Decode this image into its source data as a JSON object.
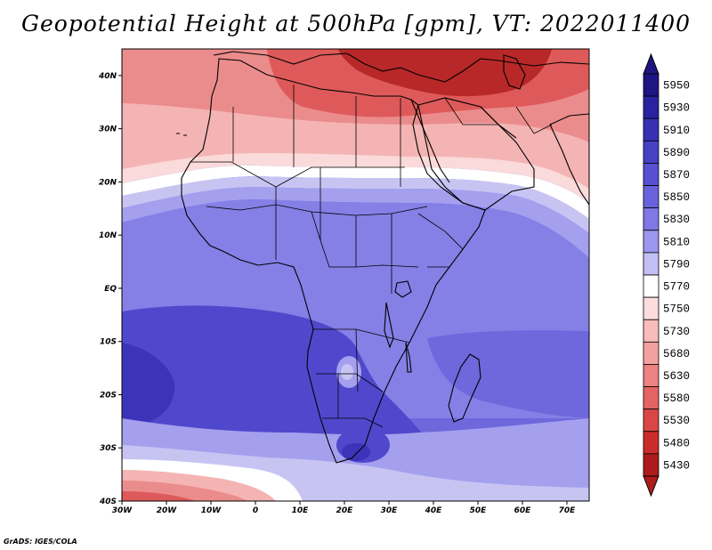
{
  "title": "Geopotential Height at 500hPa [gpm], VT: 2022011400",
  "footer": "GrADS: IGES/COLA",
  "map": {
    "lon_range": [
      -30,
      75
    ],
    "lat_range": [
      -40,
      45
    ],
    "lat_ticks": [
      {
        "value": 40,
        "label": "40N"
      },
      {
        "value": 30,
        "label": "30N"
      },
      {
        "value": 20,
        "label": "20N"
      },
      {
        "value": 10,
        "label": "10N"
      },
      {
        "value": 0,
        "label": "EQ"
      },
      {
        "value": -10,
        "label": "10S"
      },
      {
        "value": -20,
        "label": "20S"
      },
      {
        "value": -30,
        "label": "30S"
      },
      {
        "value": -40,
        "label": "40S"
      }
    ],
    "lon_ticks": [
      {
        "value": -30,
        "label": "30W"
      },
      {
        "value": -20,
        "label": "20W"
      },
      {
        "value": -10,
        "label": "10W"
      },
      {
        "value": 0,
        "label": "0"
      },
      {
        "value": 10,
        "label": "10E"
      },
      {
        "value": 20,
        "label": "20E"
      },
      {
        "value": 30,
        "label": "30E"
      },
      {
        "value": 40,
        "label": "40E"
      },
      {
        "value": 50,
        "label": "50E"
      },
      {
        "value": 60,
        "label": "60E"
      },
      {
        "value": 70,
        "label": "70E"
      }
    ]
  },
  "colorbar": {
    "levels": [
      {
        "label": "5950",
        "color": "#1e1482"
      },
      {
        "label": "5930",
        "color": "#2a22a0"
      },
      {
        "label": "5910",
        "color": "#3730b5"
      },
      {
        "label": "5890",
        "color": "#4640c4"
      },
      {
        "label": "5870",
        "color": "#5750d2"
      },
      {
        "label": "5850",
        "color": "#6a62dc"
      },
      {
        "label": "5830",
        "color": "#7f78e6"
      },
      {
        "label": "5810",
        "color": "#9c96ee"
      },
      {
        "label": "5790",
        "color": "#c2bff4"
      },
      {
        "label": "5770",
        "color": "#ffffff"
      },
      {
        "label": "5750",
        "color": "#fcdcdc"
      },
      {
        "label": "5730",
        "color": "#f8bcbc"
      },
      {
        "label": "5680",
        "color": "#f3a0a0"
      },
      {
        "label": "5630",
        "color": "#ec8282"
      },
      {
        "label": "5580",
        "color": "#e46464"
      },
      {
        "label": "5530",
        "color": "#da4646"
      },
      {
        "label": "5480",
        "color": "#ca2c2c"
      },
      {
        "label": "5430",
        "color": "#ad1c1c"
      }
    ],
    "top_arrow_color": "#1e1482",
    "bottom_arrow_color": "#ad1c1c"
  },
  "palette": {
    "deep_red": "#b82828",
    "red": "#de5a5a",
    "light_red": "#eb8c8c",
    "pink": "#f4b4b4",
    "pale_pink": "#fadada",
    "pale_blue": "#c8c4f2",
    "light_blue": "#a4a0ee",
    "mid_blue": "#8580e6",
    "blue": "#6e68dc",
    "deep_blue": "#4f48cc",
    "darker_blue": "#3c34b8",
    "coast": "#000000"
  }
}
